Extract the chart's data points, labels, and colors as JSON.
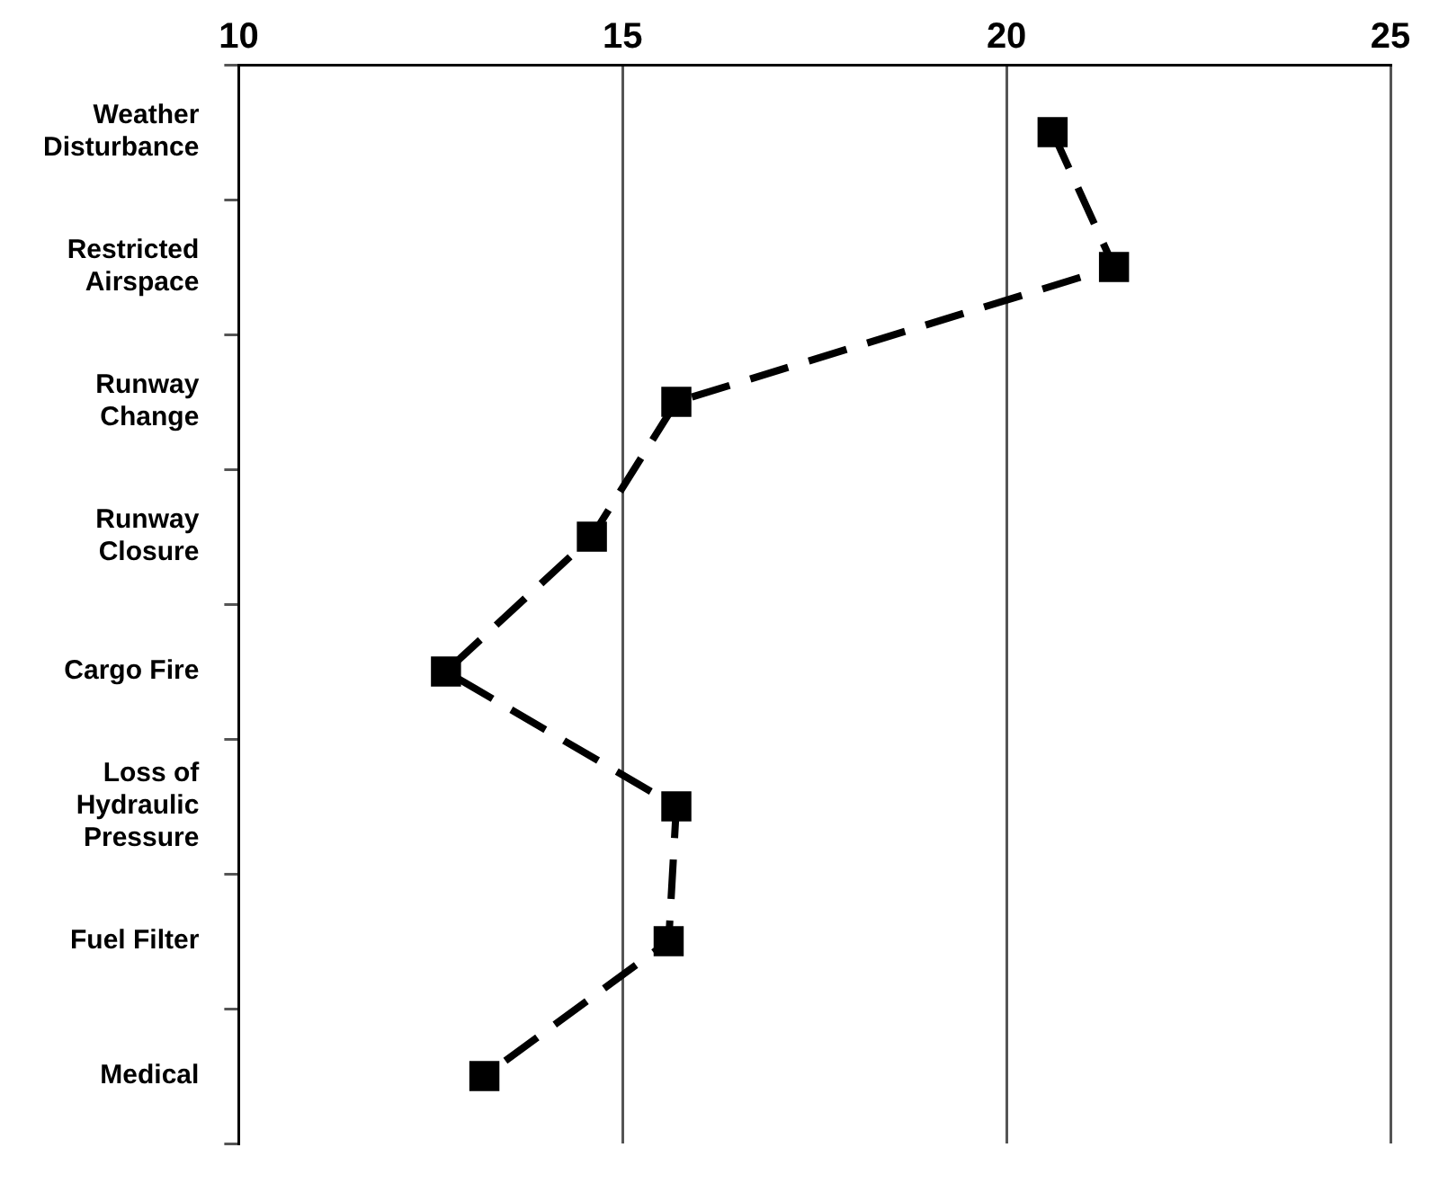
{
  "chart_data": {
    "type": "line",
    "orientation": "horizontal",
    "categories": [
      "Weather\nDisturbance",
      "Restricted\nAirspace",
      "Runway\nChange",
      "Runway\nClosure",
      "Cargo Fire",
      "Loss of\nHydraulic\nPressure",
      "Fuel Filter",
      "Medical"
    ],
    "series": [
      {
        "color": "#000000",
        "values": [
          20.6,
          21.4,
          15.7,
          14.6,
          12.7,
          15.7,
          15.6,
          13.2
        ]
      }
    ],
    "xlim": [
      10,
      25
    ],
    "xticks": [
      10,
      15,
      20,
      25
    ],
    "grid": "x",
    "marker": "square",
    "line_style": "dashed",
    "legend": false
  }
}
